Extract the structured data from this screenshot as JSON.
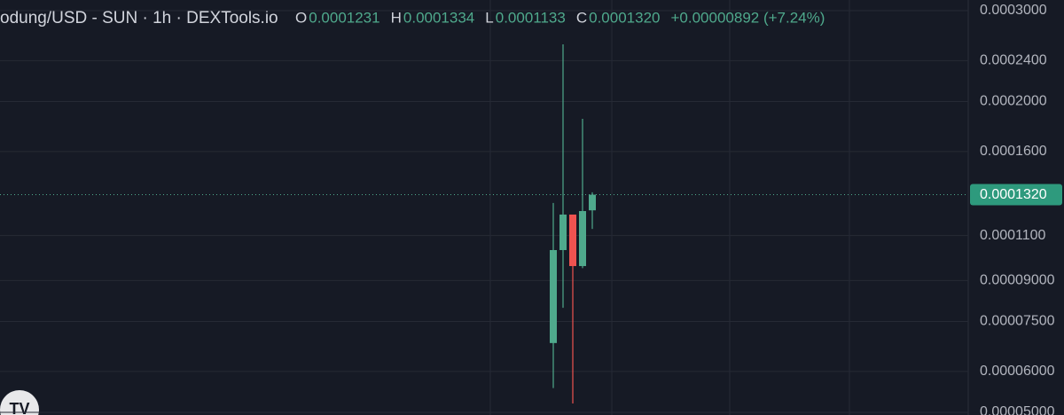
{
  "chart_data": {
    "type": "candlestick",
    "title": "odung/USD - SUN · 1h · DEXTools.io",
    "ohlc_legend": [
      {
        "key": "O",
        "value": "0.0001231"
      },
      {
        "key": "H",
        "value": "0.0001334"
      },
      {
        "key": "L",
        "value": "0.0001133"
      },
      {
        "key": "C",
        "value": "0.0001320"
      }
    ],
    "change": "+0.00000892 (+7.24%)",
    "categories": [
      null,
      null,
      null,
      null,
      null
    ],
    "open": [
      6.81e-05,
      0.0001031,
      0.0001208,
      9.6e-05,
      0.0001231
    ],
    "high": [
      0.0001272,
      0.0002582,
      0.0001208,
      0.0001852,
      0.0001334
    ],
    "low": [
      5.57e-05,
      7.97e-05,
      5.2e-05,
      9.51e-05,
      0.0001133
    ],
    "close": [
      0.0001031,
      0.0001208,
      9.6e-05,
      0.0001227,
      0.000132
    ],
    "up_color": "#4fa98c",
    "down_color": "#ef5350",
    "log_scale": true,
    "grid": true,
    "ylim": [
      4.94e-05,
      0.0003146
    ],
    "yticks": [
      {
        "value": 0.0003,
        "label": "0.0003000"
      },
      {
        "value": 0.00024,
        "label": "0.0002400"
      },
      {
        "value": 0.0002,
        "label": "0.0002000"
      },
      {
        "value": 0.00016,
        "label": "0.0001600"
      },
      {
        "value": 0.00011,
        "label": "0.0001100"
      },
      {
        "value": 9e-05,
        "label": "0.00009000"
      },
      {
        "value": 7.5e-05,
        "label": "0.00007500"
      },
      {
        "value": 6e-05,
        "label": "0.00006000"
      },
      {
        "value": 5e-05,
        "label": "0.00005000"
      }
    ],
    "last_price": {
      "value": 0.000132,
      "label": "0.0001320"
    }
  }
}
